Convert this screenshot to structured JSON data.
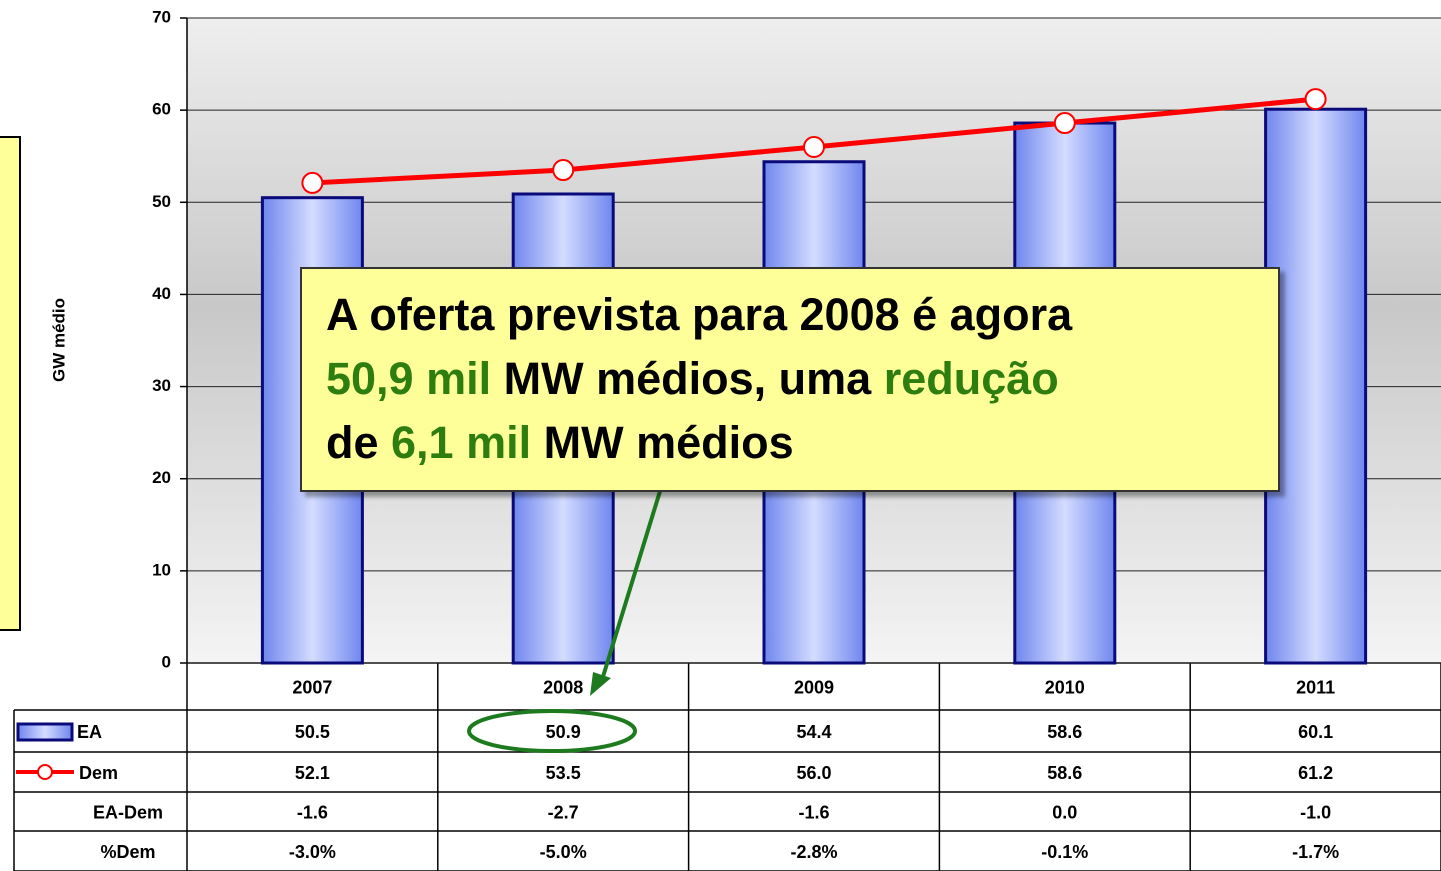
{
  "chart_data": {
    "type": "bar-line",
    "y_axis_label": "GW médio",
    "categories": [
      "2007",
      "2008",
      "2009",
      "2010",
      "2011"
    ],
    "series": [
      {
        "name": "EA",
        "type": "bar",
        "color": "#7f95f0",
        "values": [
          50.5,
          50.9,
          54.4,
          58.6,
          60.1
        ]
      },
      {
        "name": "Dem",
        "type": "line",
        "color": "#ff0000",
        "values": [
          52.1,
          53.5,
          56.0,
          58.6,
          61.2
        ],
        "value_labels": [
          "52.1",
          "53.5",
          "56.0",
          "58.6",
          "61.2"
        ]
      }
    ],
    "rows": [
      {
        "name": "EA-Dem",
        "values": [
          -1.6,
          -2.7,
          -1.6,
          0.0,
          -1.0
        ],
        "value_labels": [
          "-1.6",
          "-2.7",
          "-1.6",
          "0.0",
          "-1.0"
        ]
      },
      {
        "name": "%Dem",
        "values": [
          -3.0,
          -5.0,
          -2.8,
          -0.1,
          -1.7
        ],
        "value_labels": [
          "-3.0%",
          "-5.0%",
          "-2.8%",
          "-0.1%",
          "-1.7%"
        ]
      }
    ],
    "ylim": [
      0,
      70
    ],
    "yticks": [
      0,
      10,
      20,
      30,
      40,
      50,
      60,
      70
    ],
    "grid": true,
    "annotation": [
      [
        {
          "text": "A oferta prevista para 2008 é agora",
          "color": "#000000"
        }
      ],
      [
        {
          "text": "50,9 mil",
          "color": "#2e7d0f"
        },
        {
          "text": "MW médios, uma",
          "color": "#000000"
        },
        {
          "text": "redução",
          "color": "#2e7d0f"
        }
      ],
      [
        {
          "text": "de",
          "color": "#000000"
        },
        {
          "text": "6,1 mil",
          "color": "#2e7d0f"
        },
        {
          "text": "MW médios",
          "color": "#000000"
        }
      ]
    ]
  }
}
